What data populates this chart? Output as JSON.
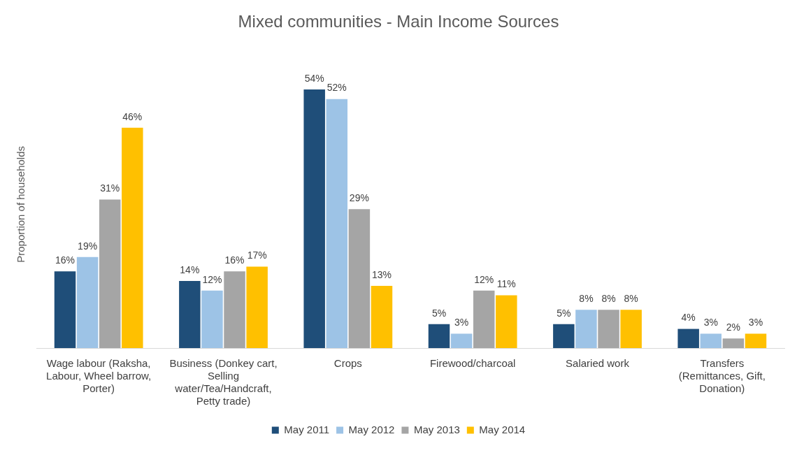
{
  "chart_data": {
    "type": "bar",
    "title": "Mixed communities - Main Income Sources",
    "ylabel": "Proportion of households",
    "categories": [
      "Wage labour (Raksha, Labour, Wheel barrow, Porter)",
      "Business (Donkey cart, Selling water/Tea/Handcraft, Petty trade)",
      "Crops",
      "Firewood/charcoal",
      "Salaried work",
      "Transfers (Remittances, Gift, Donation)"
    ],
    "series": [
      {
        "name": "May 2011",
        "color": "#1f4e79",
        "values": [
          16,
          14,
          54,
          5,
          5,
          4
        ],
        "value_labels": [
          "16%",
          "14%",
          "54%",
          "5%",
          "5%",
          "4%"
        ]
      },
      {
        "name": "May 2012",
        "color": "#9dc3e6",
        "values": [
          19,
          12,
          52,
          3,
          8,
          3
        ],
        "value_labels": [
          "19%",
          "12%",
          "52%",
          "3%",
          "8%",
          "3%"
        ]
      },
      {
        "name": "May 2013",
        "color": "#a5a5a5",
        "values": [
          31,
          16,
          29,
          12,
          8,
          2
        ],
        "value_labels": [
          "31%",
          "16%",
          "29%",
          "12%",
          "8%",
          "2%"
        ]
      },
      {
        "name": "May 2014",
        "color": "#ffc000",
        "values": [
          46,
          17,
          13,
          11,
          8,
          3
        ],
        "value_labels": [
          "46%",
          "17%",
          "13%",
          "11%",
          "8%",
          "3%"
        ]
      }
    ],
    "legend": "bottom",
    "grid": false
  }
}
